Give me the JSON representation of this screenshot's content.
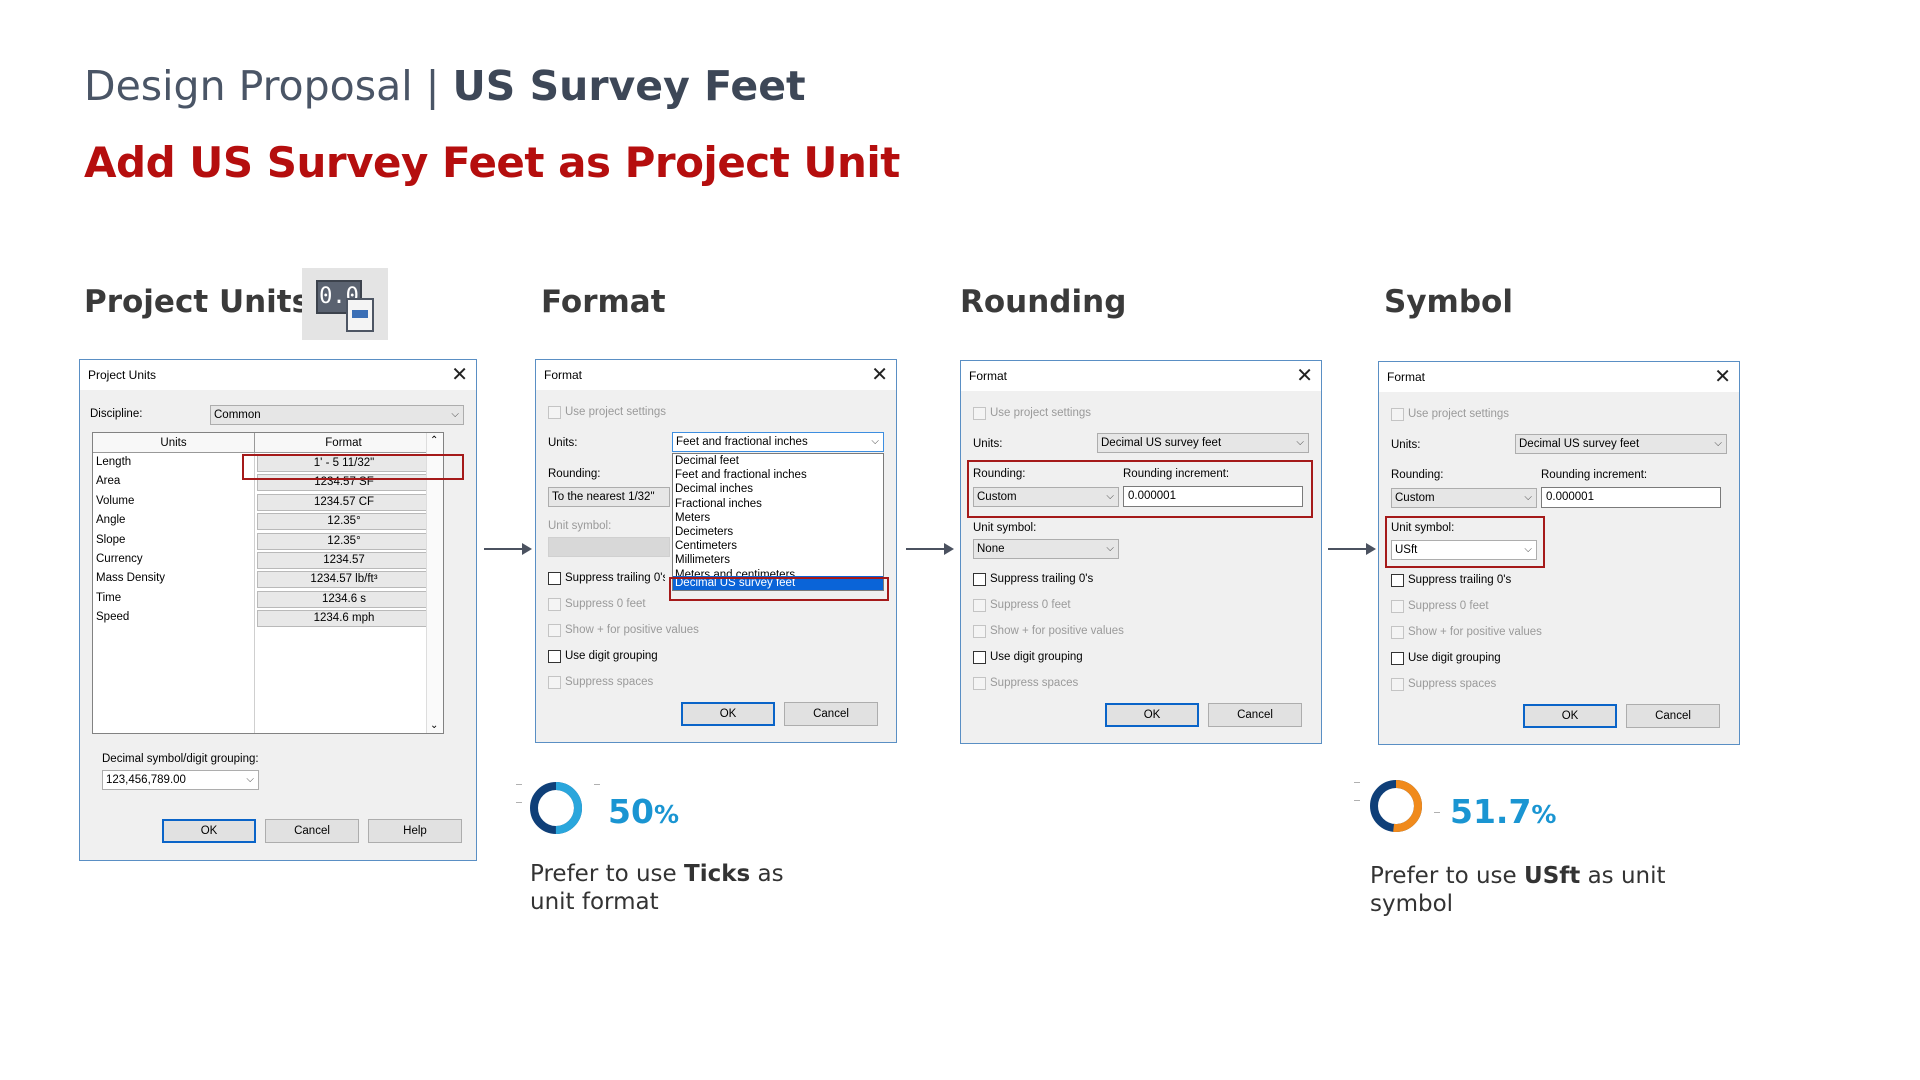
{
  "slide": {
    "title_light": "Design Proposal | ",
    "title_bold": "US Survey Feet",
    "subtitle": "Add US Survey Feet as Project Unit"
  },
  "sections": {
    "project_units": "Project Units",
    "format": "Format",
    "rounding": "Rounding",
    "symbol": "Symbol"
  },
  "project_units_icon": {
    "icon": "project-units-icon",
    "screen_text": "0.0"
  },
  "project_units_dialog": {
    "title": "Project Units",
    "discipline_label": "Discipline:",
    "discipline_value": "Common",
    "col_units": "Units",
    "col_format": "Format",
    "rows": [
      {
        "unit": "Length",
        "format": "1' - 5 11/32\""
      },
      {
        "unit": "Area",
        "format": "1234.57 SF"
      },
      {
        "unit": "Volume",
        "format": "1234.57 CF"
      },
      {
        "unit": "Angle",
        "format": "12.35°"
      },
      {
        "unit": "Slope",
        "format": "12.35°"
      },
      {
        "unit": "Currency",
        "format": "1234.57"
      },
      {
        "unit": "Mass Density",
        "format": "1234.57 lb/ft³"
      },
      {
        "unit": "Time",
        "format": "1234.6 s"
      },
      {
        "unit": "Speed",
        "format": "1234.6 mph"
      }
    ],
    "decimal_label": "Decimal symbol/digit grouping:",
    "decimal_value": "123,456,789.00",
    "ok": "OK",
    "cancel": "Cancel",
    "help": "Help"
  },
  "format_dialog": {
    "title": "Format",
    "use_project_settings": "Use project settings",
    "units_label": "Units:",
    "units_value": "Feet and fractional inches",
    "rounding_label": "Rounding:",
    "rounding_value": "To the nearest 1/32\"",
    "unit_symbol_label": "Unit symbol:",
    "suppress_trailing": "Suppress trailing 0's",
    "suppress_trailing_cut": "Suppress trailing 0's",
    "suppress_zero_feet": "Suppress 0 feet",
    "show_plus": "Show + for positive values",
    "digit_grouping": "Use digit grouping",
    "suppress_spaces": "Suppress spaces",
    "dropdown_options": [
      "Decimal feet",
      "Feet and fractional inches",
      "Decimal inches",
      "Fractional inches",
      "Meters",
      "Decimeters",
      "Centimeters",
      "Millimeters",
      "Meters and centimeters",
      "Decimal US survey feet"
    ],
    "ok": "OK",
    "cancel": "Cancel"
  },
  "rounding_dialog": {
    "title": "Format",
    "use_project_settings": "Use project settings",
    "units_label": "Units:",
    "units_value": "Decimal US survey feet",
    "rounding_label": "Rounding:",
    "rounding_value": "Custom",
    "increment_label": "Rounding increment:",
    "increment_value": "0.000001",
    "unit_symbol_label": "Unit symbol:",
    "unit_symbol_value": "None",
    "suppress_trailing": "Suppress trailing 0's",
    "suppress_zero_feet": "Suppress 0 feet",
    "show_plus": "Show + for positive values",
    "digit_grouping": "Use digit grouping",
    "suppress_spaces": "Suppress spaces",
    "ok": "OK",
    "cancel": "Cancel"
  },
  "symbol_dialog": {
    "title": "Format",
    "use_project_settings": "Use project settings",
    "units_label": "Units:",
    "units_value": "Decimal US survey feet",
    "rounding_label": "Rounding:",
    "rounding_value": "Custom",
    "increment_label": "Rounding increment:",
    "increment_value": "0.000001",
    "unit_symbol_label": "Unit symbol:",
    "unit_symbol_value": "USft",
    "suppress_trailing": "Suppress trailing 0's",
    "suppress_zero_feet": "Suppress 0 feet",
    "show_plus": "Show + for positive values",
    "digit_grouping": "Use digit grouping",
    "suppress_spaces": "Suppress spaces",
    "ok": "OK",
    "cancel": "Cancel"
  },
  "stats": [
    {
      "value": "50",
      "unit": "%",
      "fraction": 0.5,
      "caption_pre": "Prefer to use ",
      "caption_bold": "Ticks",
      "caption_post": " as unit format"
    },
    {
      "value": "51.7",
      "unit": "%",
      "fraction": 0.517,
      "caption_pre": "Prefer to use ",
      "caption_bold": "USft",
      "caption_post": " as unit symbol"
    }
  ],
  "colors": {
    "accent_red": "#b50e0e",
    "stat_blue": "#1a95d2",
    "highlight_box": "#a51a1a",
    "selection_blue": "#0a64d8"
  }
}
